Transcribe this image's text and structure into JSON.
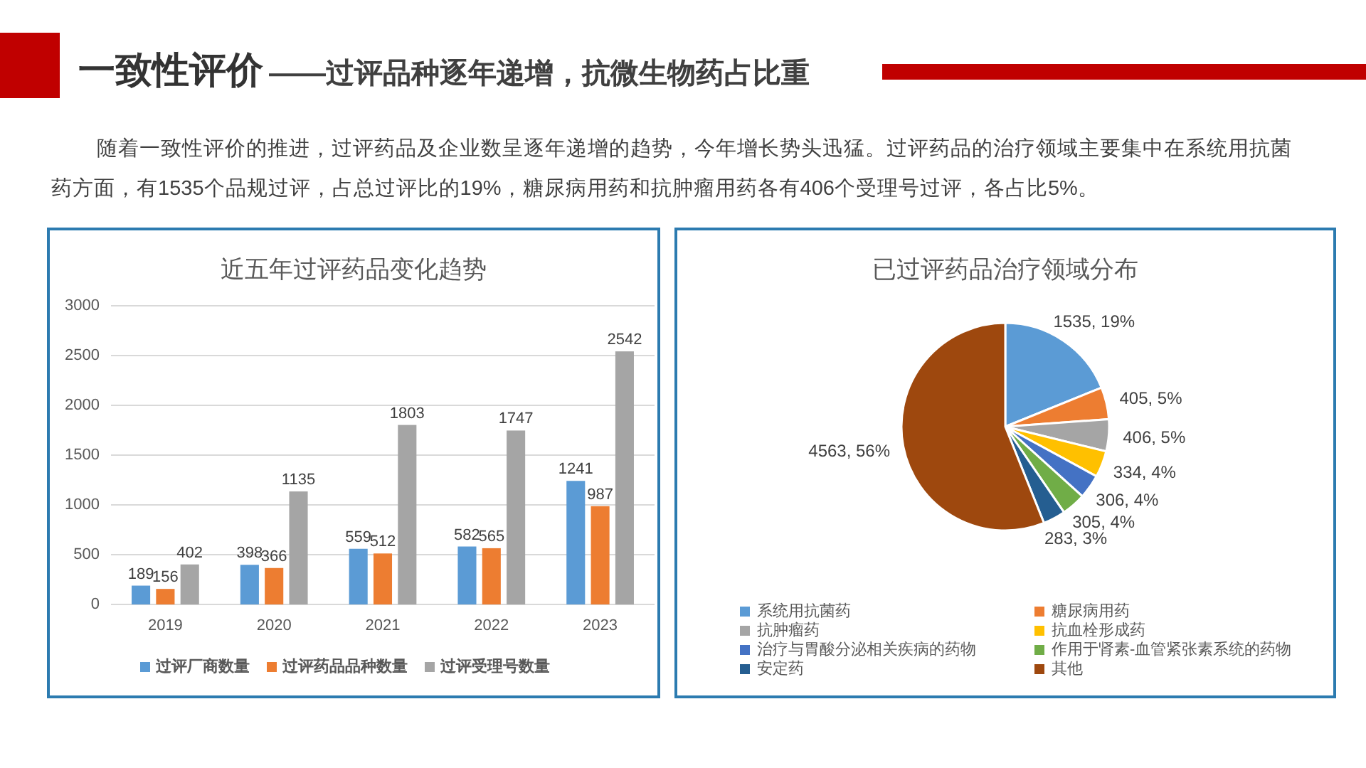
{
  "chart_data": [
    {
      "type": "other",
      "title": "一致性评价",
      "subtitle": "——过评品种逐年递增，抗微生物药占比重",
      "annotations": [
        "随着一致性评价的推进，过评药品及企业数呈逐年递增的趋势，今年增长势头迅猛。过评药品的治疗领域主要集中在系统用抗菌药方面，有1535个品规过评，占总过评比的19%，糖尿病用药和抗肿瘤用药各有406个受理号过评，各占比5%。"
      ]
    },
    {
      "type": "bar",
      "title": "近五年过评药品变化趋势",
      "categories": [
        "2019",
        "2020",
        "2021",
        "2022",
        "2023"
      ],
      "series": [
        {
          "name": "过评厂商数量",
          "color": "#5b9bd5",
          "values": [
            189,
            398,
            559,
            582,
            1241
          ]
        },
        {
          "name": "过评药品品种数量",
          "color": "#ed7d31",
          "values": [
            156,
            366,
            512,
            565,
            987
          ]
        },
        {
          "name": "过评受理号数量",
          "color": "#a5a5a5",
          "values": [
            402,
            1135,
            1803,
            1747,
            2542
          ]
        }
      ],
      "ylim": [
        0,
        3000
      ],
      "yticks": [
        0,
        500,
        1000,
        1500,
        2000,
        2500,
        3000
      ],
      "grid": "y",
      "legend": "bottom",
      "data_labels": true
    },
    {
      "type": "pie",
      "title": "已过评药品治疗领域分布",
      "categories": [
        "系统用抗菌药",
        "糖尿病用药",
        "抗肿瘤药",
        "抗血栓形成药",
        "治疗与胃酸分泌相关疾病的药物",
        "作用于肾素-血管紧张素系统的药物",
        "安定药",
        "其他"
      ],
      "values": [
        1535,
        405,
        406,
        334,
        306,
        305,
        283,
        4563
      ],
      "colors": [
        "#5b9bd5",
        "#ed7d31",
        "#a5a5a5",
        "#ffc000",
        "#4472c4",
        "#70ad47",
        "#255e91",
        "#9e480e"
      ],
      "value_labels": [
        "1535, 19%",
        "405, 5%",
        "406, 5%",
        "334, 4%",
        "306, 4%",
        "305, 4%",
        "283, 3%",
        "4563, 56%"
      ],
      "legend": "bottom"
    }
  ]
}
